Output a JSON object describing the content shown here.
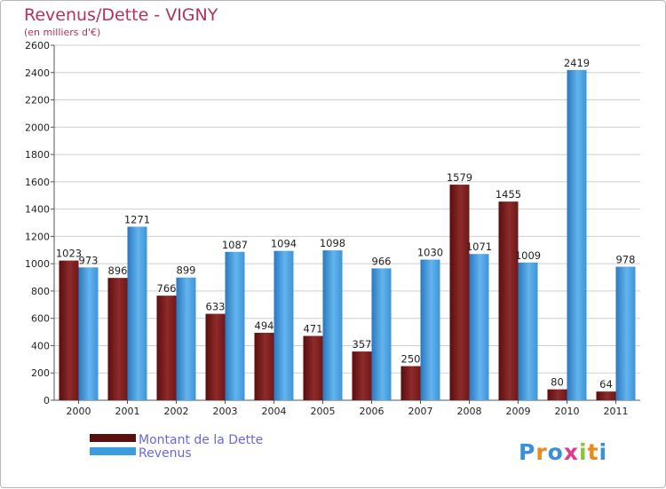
{
  "chart_data": {
    "type": "bar",
    "title": "Revenus/Dette - VIGNY",
    "subtitle": "(en milliers d'€)",
    "categories": [
      "2000",
      "2001",
      "2002",
      "2003",
      "2004",
      "2005",
      "2006",
      "2007",
      "2008",
      "2009",
      "2010",
      "2011"
    ],
    "series": [
      {
        "name": "Montant de la Dette",
        "color": "#7a1a1a",
        "values": [
          1023,
          896,
          766,
          633,
          494,
          471,
          357,
          250,
          1579,
          1455,
          80,
          64
        ]
      },
      {
        "name": "Revenus",
        "color": "#3d9be0",
        "values": [
          973,
          1271,
          899,
          1087,
          1094,
          1098,
          966,
          1030,
          1071,
          1009,
          2419,
          978
        ]
      }
    ],
    "ylim": [
      0,
      2600
    ],
    "yticks": [
      0,
      200,
      400,
      600,
      800,
      1000,
      1200,
      1400,
      1600,
      1800,
      2000,
      2200,
      2400,
      2600
    ],
    "grid": true,
    "legend_position": "bottom-left"
  },
  "colors": {
    "title": "#b5325a",
    "debt_dark": "#5a0e0e",
    "debt_light": "#9a3030",
    "rev_dark": "#2a78c0",
    "rev_light": "#63b4ee"
  },
  "logo": {
    "text": "Proxiti"
  }
}
